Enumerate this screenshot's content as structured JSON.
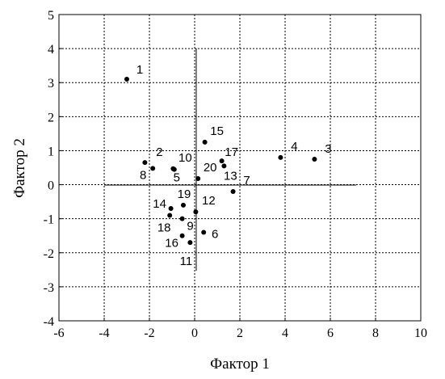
{
  "chart_data": {
    "type": "scatter",
    "x_label": "Фактор 1",
    "y_label": "Фактор 2",
    "labels": [
      "1",
      "2",
      "3",
      "4",
      "5",
      "6",
      "7",
      "8",
      "9",
      "10",
      "11",
      "12",
      "13",
      "14",
      "15",
      "16",
      "17",
      "18",
      "19",
      "20"
    ],
    "x": [
      -3.0,
      -2.2,
      5.3,
      3.8,
      -0.9,
      0.4,
      1.7,
      -1.85,
      -0.55,
      -0.95,
      -0.2,
      0.05,
      1.3,
      -1.05,
      0.45,
      -0.55,
      1.2,
      -1.1,
      -0.5,
      0.15
    ],
    "y": [
      3.1,
      0.65,
      0.75,
      0.8,
      0.45,
      -1.4,
      -0.2,
      0.48,
      -1.0,
      0.47,
      -1.7,
      -0.8,
      0.55,
      -0.7,
      1.25,
      -1.5,
      0.7,
      -0.9,
      -0.6,
      0.18
    ],
    "color": "#000000",
    "xlim": [
      -6,
      10
    ],
    "xticks": [
      -6,
      -4,
      -2,
      0,
      2,
      4,
      6,
      8,
      10
    ],
    "ylim": [
      -4,
      5
    ],
    "yticks": [
      -4,
      -3,
      -2,
      -1,
      0,
      1,
      2,
      3,
      4,
      5
    ],
    "grid": true
  }
}
